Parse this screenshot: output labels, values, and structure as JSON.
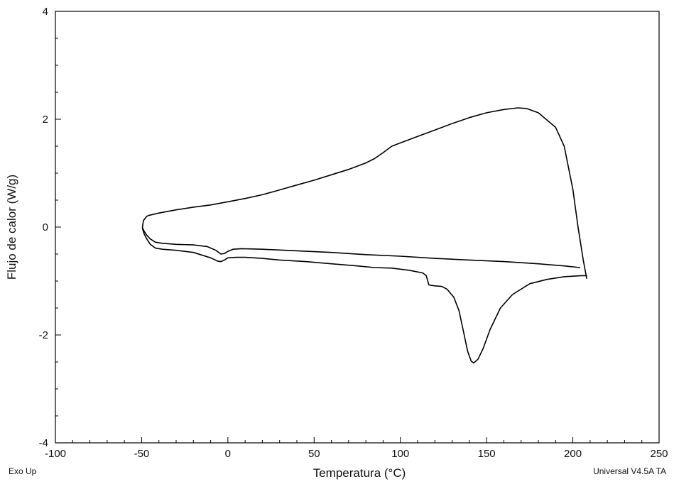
{
  "chart_data": {
    "type": "line",
    "title": "",
    "xlabel": "Temperatura (°C)",
    "ylabel": "Flujo de calor (W/g)",
    "xlim": [
      -100,
      250
    ],
    "ylim": [
      -4,
      4
    ],
    "x_ticks": [
      -100,
      -50,
      0,
      50,
      100,
      150,
      200,
      250
    ],
    "y_ticks": [
      -4,
      -2,
      0,
      2,
      4
    ],
    "grid": false,
    "legend": "none",
    "line_color": "#000000",
    "series": [
      {
        "points": [
          [
            -49.5,
            0.0
          ],
          [
            -49,
            0.12
          ],
          [
            -48,
            0.16
          ],
          [
            -47,
            0.2
          ],
          [
            -45.5,
            0.22
          ],
          [
            -40,
            0.26
          ],
          [
            -30,
            0.32
          ],
          [
            -20,
            0.37
          ],
          [
            -10,
            0.41
          ],
          [
            0,
            0.47
          ],
          [
            10,
            0.53
          ],
          [
            20,
            0.6
          ],
          [
            30,
            0.69
          ],
          [
            40,
            0.78
          ],
          [
            50,
            0.87
          ],
          [
            60,
            0.97
          ],
          [
            70,
            1.07
          ],
          [
            80,
            1.19
          ],
          [
            85,
            1.27
          ],
          [
            90,
            1.38
          ],
          [
            95,
            1.5
          ],
          [
            100,
            1.56
          ],
          [
            110,
            1.68
          ],
          [
            120,
            1.8
          ],
          [
            130,
            1.92
          ],
          [
            140,
            2.03
          ],
          [
            150,
            2.12
          ],
          [
            160,
            2.18
          ],
          [
            168,
            2.21
          ],
          [
            173,
            2.2
          ],
          [
            180,
            2.12
          ],
          [
            190,
            1.85
          ],
          [
            195,
            1.5
          ],
          [
            200,
            0.7
          ],
          [
            203,
            0.0
          ],
          [
            206,
            -0.6
          ],
          [
            208,
            -0.95
          ]
        ]
      },
      {
        "points": [
          [
            208,
            -0.9
          ],
          [
            205,
            -0.9
          ],
          [
            195,
            -0.92
          ],
          [
            185,
            -0.97
          ],
          [
            175,
            -1.05
          ],
          [
            165,
            -1.25
          ],
          [
            158,
            -1.5
          ],
          [
            152,
            -1.9
          ],
          [
            148,
            -2.25
          ],
          [
            145,
            -2.45
          ],
          [
            142.5,
            -2.52
          ],
          [
            141,
            -2.48
          ],
          [
            139,
            -2.3
          ],
          [
            137,
            -2.0
          ],
          [
            134,
            -1.55
          ],
          [
            131,
            -1.3
          ],
          [
            127,
            -1.15
          ],
          [
            124,
            -1.1
          ],
          [
            120,
            -1.09
          ],
          [
            118,
            -1.08
          ],
          [
            116.5,
            -1.07
          ],
          [
            115,
            -0.9
          ],
          [
            113,
            -0.85
          ],
          [
            105,
            -0.8
          ],
          [
            95,
            -0.76
          ],
          [
            85,
            -0.75
          ],
          [
            75,
            -0.72
          ],
          [
            60,
            -0.68
          ],
          [
            45,
            -0.64
          ],
          [
            30,
            -0.61
          ],
          [
            20,
            -0.58
          ],
          [
            10,
            -0.56
          ],
          [
            5,
            -0.56
          ],
          [
            0,
            -0.57
          ],
          [
            -2,
            -0.61
          ],
          [
            -4,
            -0.64
          ],
          [
            -6,
            -0.63
          ],
          [
            -10,
            -0.57
          ],
          [
            -20,
            -0.47
          ],
          [
            -30,
            -0.43
          ],
          [
            -38,
            -0.41
          ],
          [
            -42,
            -0.39
          ],
          [
            -45,
            -0.32
          ],
          [
            -47,
            -0.22
          ],
          [
            -48.5,
            -0.13
          ],
          [
            -49.5,
            -0.03
          ]
        ]
      },
      {
        "points": [
          [
            -49.5,
            -0.01
          ],
          [
            -48.5,
            -0.08
          ],
          [
            -47,
            -0.15
          ],
          [
            -45,
            -0.22
          ],
          [
            -42,
            -0.28
          ],
          [
            -38,
            -0.3
          ],
          [
            -30,
            -0.32
          ],
          [
            -20,
            -0.33
          ],
          [
            -12,
            -0.36
          ],
          [
            -7,
            -0.43
          ],
          [
            -4,
            -0.5
          ],
          [
            -2,
            -0.49
          ],
          [
            0,
            -0.45
          ],
          [
            3,
            -0.41
          ],
          [
            8,
            -0.4
          ],
          [
            20,
            -0.41
          ],
          [
            40,
            -0.44
          ],
          [
            60,
            -0.47
          ],
          [
            80,
            -0.51
          ],
          [
            100,
            -0.54
          ],
          [
            120,
            -0.58
          ],
          [
            140,
            -0.61
          ],
          [
            160,
            -0.64
          ],
          [
            180,
            -0.68
          ],
          [
            195,
            -0.72
          ],
          [
            204,
            -0.75
          ]
        ]
      }
    ]
  },
  "footer": {
    "left": "Exo Up",
    "right": "Universal V4.5A TA"
  }
}
